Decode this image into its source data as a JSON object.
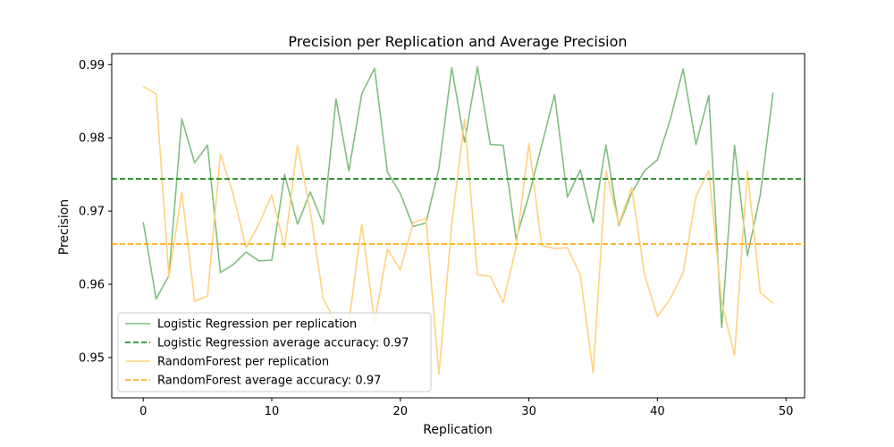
{
  "chart_data": {
    "type": "line",
    "title": "Precision per Replication and Average Precision",
    "xlabel": "Replication",
    "ylabel": "Precision",
    "xlim": [
      -2.45,
      51.45
    ],
    "ylim": [
      0.9445,
      0.9915
    ],
    "xticks": [
      "0",
      "10",
      "20",
      "30",
      "40",
      "50"
    ],
    "yticks": [
      "0.95",
      "0.96",
      "0.97",
      "0.98",
      "0.99"
    ],
    "grid": false,
    "legend_position": "lower-left",
    "series": [
      {
        "name": "Logistic Regression per replication",
        "color": "#7fbf7f",
        "x": [
          0,
          1,
          2,
          3,
          4,
          5,
          6,
          7,
          8,
          9,
          10,
          11,
          12,
          13,
          14,
          15,
          16,
          17,
          18,
          19,
          20,
          21,
          22,
          23,
          24,
          25,
          26,
          27,
          28,
          29,
          30,
          31,
          32,
          33,
          34,
          35,
          36,
          37,
          38,
          39,
          40,
          41,
          42,
          43,
          44,
          45,
          46,
          47,
          48,
          49
        ],
        "values": [
          0.9685,
          0.958,
          0.9612,
          0.9826,
          0.9766,
          0.979,
          0.9616,
          0.9627,
          0.9644,
          0.9632,
          0.9633,
          0.975,
          0.9682,
          0.9726,
          0.9682,
          0.9853,
          0.9755,
          0.986,
          0.9895,
          0.9753,
          0.9724,
          0.9679,
          0.9684,
          0.9758,
          0.9896,
          0.9794,
          0.9897,
          0.9791,
          0.979,
          0.9662,
          0.9721,
          0.979,
          0.9859,
          0.9719,
          0.9756,
          0.9684,
          0.979,
          0.968,
          0.9725,
          0.9755,
          0.977,
          0.9825,
          0.9894,
          0.9791,
          0.9858,
          0.9541,
          0.979,
          0.9639,
          0.9722,
          0.9862
        ]
      },
      {
        "name": "RandomForest per replication",
        "color": "#ffd27f",
        "x": [
          0,
          1,
          2,
          3,
          4,
          5,
          6,
          7,
          8,
          9,
          10,
          11,
          12,
          13,
          14,
          15,
          16,
          17,
          18,
          19,
          20,
          21,
          22,
          23,
          24,
          25,
          26,
          27,
          28,
          29,
          30,
          31,
          32,
          33,
          34,
          35,
          36,
          37,
          38,
          39,
          40,
          41,
          42,
          43,
          44,
          45,
          46,
          47,
          48,
          49
        ],
        "values": [
          0.987,
          0.986,
          0.961,
          0.9726,
          0.9577,
          0.9584,
          0.9778,
          0.9723,
          0.965,
          0.9682,
          0.9722,
          0.965,
          0.979,
          0.97,
          0.958,
          0.9548,
          0.9548,
          0.9682,
          0.9548,
          0.9648,
          0.962,
          0.9684,
          0.969,
          0.9477,
          0.9682,
          0.9825,
          0.9613,
          0.9611,
          0.9575,
          0.965,
          0.9792,
          0.9653,
          0.9649,
          0.965,
          0.9613,
          0.9479,
          0.9755,
          0.9682,
          0.9732,
          0.9613,
          0.9556,
          0.958,
          0.9616,
          0.972,
          0.9755,
          0.9575,
          0.9503,
          0.9755,
          0.9589,
          0.9574
        ]
      }
    ],
    "reference_lines": [
      {
        "name": "Logistic Regression average accuracy: 0.97",
        "color": "#008000",
        "value": 0.9744
      },
      {
        "name": "RandomForest average accuracy: 0.97",
        "color": "#ffa500",
        "value": 0.9655
      }
    ]
  }
}
